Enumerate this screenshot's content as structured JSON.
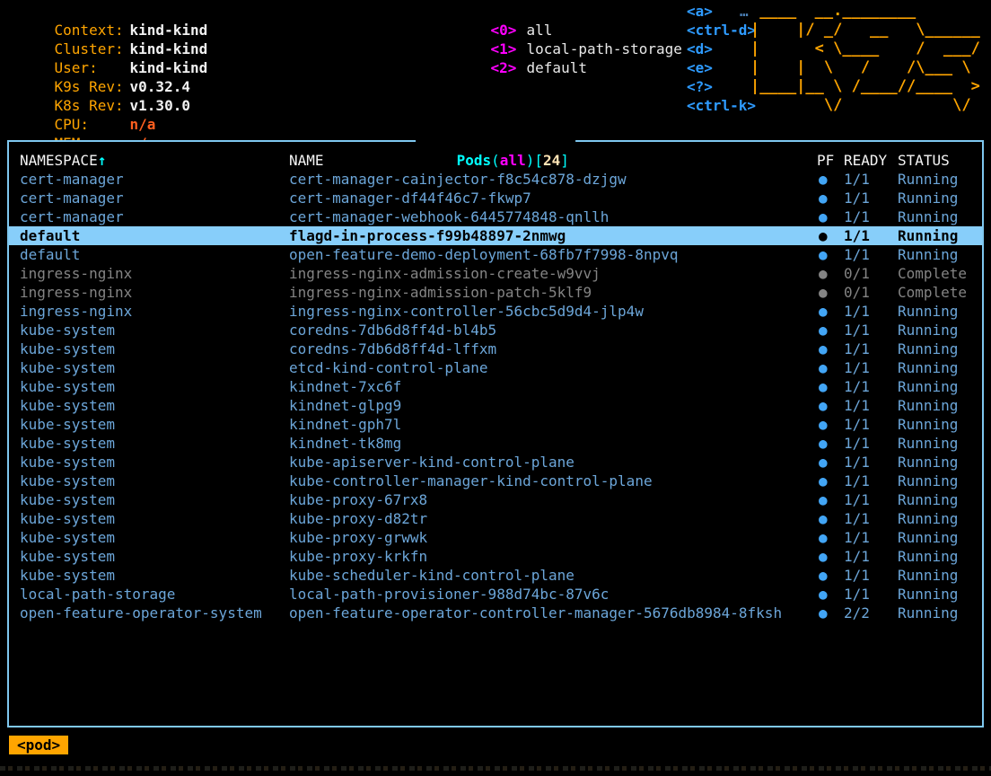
{
  "header": {
    "info": [
      {
        "label": "Context:",
        "value": "kind-kind",
        "na": false
      },
      {
        "label": "Cluster:",
        "value": "kind-kind",
        "na": false
      },
      {
        "label": "User:",
        "value": "kind-kind",
        "na": false
      },
      {
        "label": "K9s Rev:",
        "value": "v0.32.4",
        "na": false
      },
      {
        "label": "K8s Rev:",
        "value": "v1.30.0",
        "na": false
      },
      {
        "label": "CPU:",
        "value": "n/a",
        "na": true
      },
      {
        "label": "MEM:",
        "value": "n/a",
        "na": true
      }
    ],
    "namespaces": [
      {
        "key": "<0>",
        "label": "all"
      },
      {
        "key": "<1>",
        "label": "local-path-storage"
      },
      {
        "key": "<2>",
        "label": "default"
      }
    ],
    "menu_keys": [
      "<a>",
      "<ctrl-d>",
      "<d>",
      "<e>",
      "<?>",
      "<ctrl-k>"
    ],
    "menu_truncated": "…",
    "logo_lines": [
      " ____  __.________",
      "|    |/ _/   __   \\______",
      "|      < \\____    /  ___/",
      "|    |  \\   /    /\\___ \\",
      "|____|__ \\ /____//____  >",
      "        \\/            \\/"
    ]
  },
  "table": {
    "title": {
      "resource": "Pods",
      "paren_open": "(",
      "namespace": "all",
      "paren_close": ")",
      "bracket_open": "[",
      "count": "24",
      "bracket_close": "]"
    },
    "columns": [
      "NAMESPACE",
      "NAME",
      "PF",
      "READY",
      "STATUS"
    ],
    "sort_arrow": "↑",
    "pf_dot": "●",
    "rows": [
      {
        "namespace": "cert-manager",
        "name": "cert-manager-cainjector-f8c54c878-dzjgw",
        "ready": "1/1",
        "status": "Running",
        "state": "normal"
      },
      {
        "namespace": "cert-manager",
        "name": "cert-manager-df44f46c7-fkwp7",
        "ready": "1/1",
        "status": "Running",
        "state": "normal"
      },
      {
        "namespace": "cert-manager",
        "name": "cert-manager-webhook-6445774848-qnllh",
        "ready": "1/1",
        "status": "Running",
        "state": "normal"
      },
      {
        "namespace": "default",
        "name": "flagd-in-process-f99b48897-2nmwg",
        "ready": "1/1",
        "status": "Running",
        "state": "selected"
      },
      {
        "namespace": "default",
        "name": "open-feature-demo-deployment-68fb7f7998-8npvq",
        "ready": "1/1",
        "status": "Running",
        "state": "normal"
      },
      {
        "namespace": "ingress-nginx",
        "name": "ingress-nginx-admission-create-w9vvj",
        "ready": "0/1",
        "status": "Complete",
        "state": "completed"
      },
      {
        "namespace": "ingress-nginx",
        "name": "ingress-nginx-admission-patch-5klf9",
        "ready": "0/1",
        "status": "Complete",
        "state": "completed"
      },
      {
        "namespace": "ingress-nginx",
        "name": "ingress-nginx-controller-56cbc5d9d4-jlp4w",
        "ready": "1/1",
        "status": "Running",
        "state": "normal"
      },
      {
        "namespace": "kube-system",
        "name": "coredns-7db6d8ff4d-bl4b5",
        "ready": "1/1",
        "status": "Running",
        "state": "normal"
      },
      {
        "namespace": "kube-system",
        "name": "coredns-7db6d8ff4d-lffxm",
        "ready": "1/1",
        "status": "Running",
        "state": "normal"
      },
      {
        "namespace": "kube-system",
        "name": "etcd-kind-control-plane",
        "ready": "1/1",
        "status": "Running",
        "state": "normal"
      },
      {
        "namespace": "kube-system",
        "name": "kindnet-7xc6f",
        "ready": "1/1",
        "status": "Running",
        "state": "normal"
      },
      {
        "namespace": "kube-system",
        "name": "kindnet-glpg9",
        "ready": "1/1",
        "status": "Running",
        "state": "normal"
      },
      {
        "namespace": "kube-system",
        "name": "kindnet-gph7l",
        "ready": "1/1",
        "status": "Running",
        "state": "normal"
      },
      {
        "namespace": "kube-system",
        "name": "kindnet-tk8mg",
        "ready": "1/1",
        "status": "Running",
        "state": "normal"
      },
      {
        "namespace": "kube-system",
        "name": "kube-apiserver-kind-control-plane",
        "ready": "1/1",
        "status": "Running",
        "state": "normal"
      },
      {
        "namespace": "kube-system",
        "name": "kube-controller-manager-kind-control-plane",
        "ready": "1/1",
        "status": "Running",
        "state": "normal"
      },
      {
        "namespace": "kube-system",
        "name": "kube-proxy-67rx8",
        "ready": "1/1",
        "status": "Running",
        "state": "normal"
      },
      {
        "namespace": "kube-system",
        "name": "kube-proxy-d82tr",
        "ready": "1/1",
        "status": "Running",
        "state": "normal"
      },
      {
        "namespace": "kube-system",
        "name": "kube-proxy-grwwk",
        "ready": "1/1",
        "status": "Running",
        "state": "normal"
      },
      {
        "namespace": "kube-system",
        "name": "kube-proxy-krkfn",
        "ready": "1/1",
        "status": "Running",
        "state": "normal"
      },
      {
        "namespace": "kube-system",
        "name": "kube-scheduler-kind-control-plane",
        "ready": "1/1",
        "status": "Running",
        "state": "normal"
      },
      {
        "namespace": "local-path-storage",
        "name": "local-path-provisioner-988d74bc-87v6c",
        "ready": "1/1",
        "status": "Running",
        "state": "normal"
      },
      {
        "namespace": "open-feature-operator-system",
        "name": "open-feature-operator-controller-manager-5676db8984-8fksh",
        "ready": "2/2",
        "status": "Running",
        "state": "normal"
      }
    ]
  },
  "crumbs": {
    "pod_label": "<pod>"
  },
  "colors": {
    "background": "#000000",
    "label_orange": "#ffa500",
    "value_white": "#f2f2f2",
    "na_orange_red": "#ff5f1f",
    "namespace_key_magenta": "#ff00ff",
    "menu_key_blue": "#2e9bff",
    "logo_orange": "#ffa500",
    "frame_border_blue": "#7fc8f0",
    "title_cyan": "#00ffff",
    "count_wheat": "#ffe4b5",
    "row_blue": "#6ca6d9",
    "row_completed_gray": "#848484",
    "selected_row_bg": "#87cefa",
    "selected_row_fg": "#000000",
    "crumb_bg": "#ffa500"
  }
}
